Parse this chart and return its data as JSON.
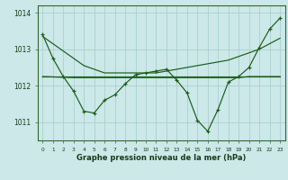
{
  "title": "Graphe pression niveau de la mer (hPa)",
  "background_color": "#cce8e8",
  "grid_color": "#aad0d0",
  "line_color": "#1a5c1a",
  "x_values": [
    0,
    1,
    2,
    3,
    4,
    5,
    6,
    7,
    8,
    9,
    10,
    11,
    12,
    13,
    14,
    15,
    16,
    17,
    18,
    19,
    20,
    21,
    22,
    23
  ],
  "series_main": [
    1013.4,
    1012.75,
    1012.25,
    1011.85,
    1011.3,
    1011.25,
    1011.6,
    1011.75,
    1012.05,
    1012.3,
    1012.35,
    1012.4,
    1012.45,
    1012.15,
    1011.8,
    1011.05,
    1010.75,
    1011.35,
    1012.1,
    1012.25,
    1012.5,
    1013.05,
    1013.55,
    1013.85
  ],
  "series_diagonal": [
    1013.35,
    1013.15,
    1012.95,
    1012.75,
    1012.55,
    1012.45,
    1012.35,
    1012.35,
    1012.35,
    1012.35,
    1012.35,
    1012.35,
    1012.4,
    1012.45,
    1012.5,
    1012.55,
    1012.6,
    1012.65,
    1012.7,
    1012.8,
    1012.9,
    1013.0,
    1013.15,
    1013.3
  ],
  "series_flat": [
    1012.25,
    1012.25,
    1012.25,
    1012.25,
    1012.25,
    1012.25,
    1012.25,
    1012.25,
    1012.25,
    1012.25,
    1012.25,
    1012.25,
    1012.25,
    1012.25,
    1012.25,
    1012.25,
    1012.25,
    1012.25,
    1012.25,
    1012.25,
    1012.25,
    1012.25,
    1012.25,
    1012.25
  ],
  "series_slight_slope": [
    1012.25,
    1012.24,
    1012.23,
    1012.22,
    1012.22,
    1012.22,
    1012.22,
    1012.22,
    1012.22,
    1012.22,
    1012.22,
    1012.22,
    1012.22,
    1012.22,
    1012.22,
    1012.22,
    1012.22,
    1012.22,
    1012.22,
    1012.22,
    1012.25,
    1012.25,
    1012.25,
    1012.25
  ],
  "ylim": [
    1010.5,
    1014.2
  ],
  "yticks": [
    1011,
    1012,
    1013,
    1014
  ],
  "xlim": [
    -0.5,
    23.5
  ]
}
